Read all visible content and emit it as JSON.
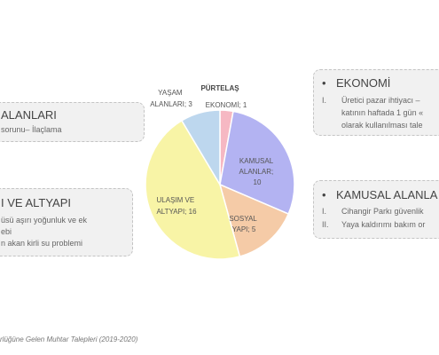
{
  "cards": {
    "alanlar": {
      "title": "ALANLARI",
      "line1": "sorunu– İlaçlama"
    },
    "altyapi": {
      "title": "I VE ALTYAPI",
      "line1": "üsü aşırı yoğunluk ve ek",
      "line2": "ebi",
      "line3": "n  akan kirli su problemi"
    },
    "ekonomi": {
      "bullet": "•",
      "title": "EKONOMİ",
      "item1_num": "I.",
      "item1_line1": "Üretici pazar ihtiyacı –",
      "item1_line2": "katının haftada 1 gün «",
      "item1_line3": "olarak kullanılması tale"
    },
    "kamusal": {
      "bullet": "•",
      "title": "KAMUSAL ALANLA",
      "item1_num": "I.",
      "item1_text": "Cihangir Parkı güvenlik",
      "item2_num": "II.",
      "item2_text": "Yaya kaldırımı bakım or"
    }
  },
  "chart_data": {
    "type": "pie",
    "slices": [
      {
        "label": "EKONOMİ; 1",
        "value": 1,
        "color": "#f6b8c3"
      },
      {
        "label": "KAMUSAL ALANLAR; 10",
        "value": 10,
        "color": "#b3b3f2"
      },
      {
        "label": "SOSYAL YAPI; 5",
        "value": 5,
        "color": "#f5cba7"
      },
      {
        "label": "ULAŞIM VE ALTYAPI; 16",
        "value": 16,
        "color": "#f8f4a6"
      },
      {
        "label": "YAŞAM ALANLARI; 3",
        "value": 3,
        "color": "#bdd7ee"
      },
      {
        "label": "PÜRTELAŞ",
        "value": 0,
        "color": "#e6e6e6"
      }
    ],
    "legend": "none"
  },
  "caption": "rlüğüne Gelen Muhtar Talepleri (2019-2020)"
}
